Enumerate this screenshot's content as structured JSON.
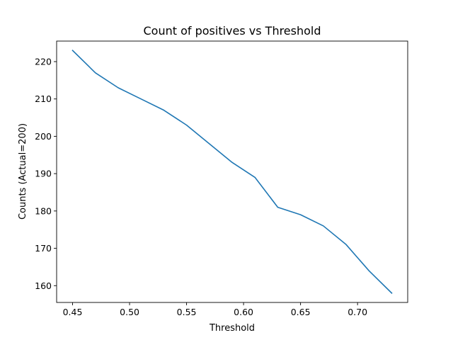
{
  "chart_data": {
    "type": "line",
    "title": "Count of positives vs Threshold",
    "xlabel": "Threshold",
    "ylabel": "Counts (Actual=200)",
    "xlim": [
      0.436,
      0.744
    ],
    "ylim": [
      155.5,
      225.5
    ],
    "xticks": [
      0.45,
      0.5,
      0.55,
      0.6,
      0.65,
      0.7
    ],
    "xtick_labels": [
      "0.45",
      "0.50",
      "0.55",
      "0.60",
      "0.65",
      "0.70"
    ],
    "yticks": [
      160,
      170,
      180,
      190,
      200,
      210,
      220
    ],
    "ytick_labels": [
      "160",
      "170",
      "180",
      "190",
      "200",
      "210",
      "220"
    ],
    "grid": false,
    "series": [
      {
        "color": "#1f77b4",
        "x": [
          0.45,
          0.47,
          0.49,
          0.51,
          0.53,
          0.55,
          0.57,
          0.59,
          0.61,
          0.63,
          0.65,
          0.67,
          0.69,
          0.71,
          0.73
        ],
        "y": [
          223,
          217,
          213,
          210,
          207,
          203,
          198,
          193,
          189,
          181,
          179,
          176,
          171,
          164,
          158
        ]
      }
    ]
  }
}
